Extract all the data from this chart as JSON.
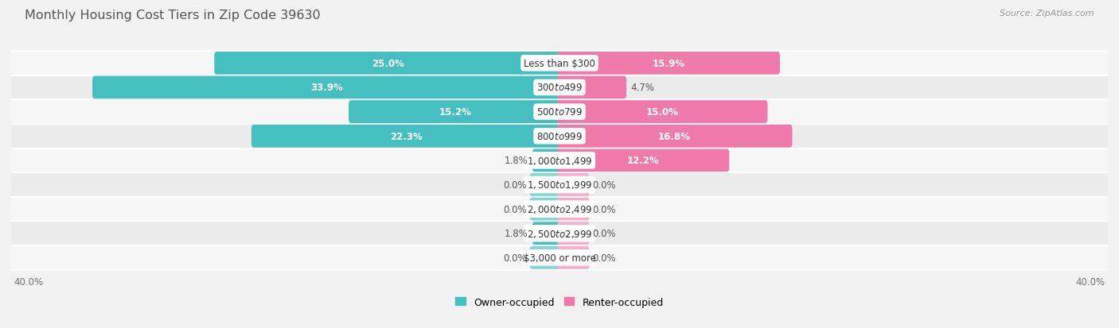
{
  "title": "Monthly Housing Cost Tiers in Zip Code 39630",
  "source": "Source: ZipAtlas.com",
  "categories": [
    "Less than $300",
    "$300 to $499",
    "$500 to $799",
    "$800 to $999",
    "$1,000 to $1,499",
    "$1,500 to $1,999",
    "$2,000 to $2,499",
    "$2,500 to $2,999",
    "$3,000 or more"
  ],
  "owner_values": [
    25.0,
    33.9,
    15.2,
    22.3,
    1.8,
    0.0,
    0.0,
    1.8,
    0.0
  ],
  "renter_values": [
    15.9,
    4.7,
    15.0,
    16.8,
    12.2,
    0.0,
    0.0,
    0.0,
    0.0
  ],
  "owner_color": "#45bfbf",
  "renter_color": "#f07aaa",
  "owner_color_light": "#85d5d5",
  "renter_color_light": "#f5b0cc",
  "bg_color": "#f2f2f2",
  "row_bg_color_even": "#f7f7f7",
  "row_bg_color_odd": "#ececec",
  "max_value": 40.0,
  "axis_label_left": "40.0%",
  "axis_label_right": "40.0%",
  "title_fontsize": 11.5,
  "label_fontsize": 8.5,
  "cat_fontsize": 8.5,
  "source_fontsize": 8.0,
  "bar_height": 0.58,
  "stub_size": 2.0
}
